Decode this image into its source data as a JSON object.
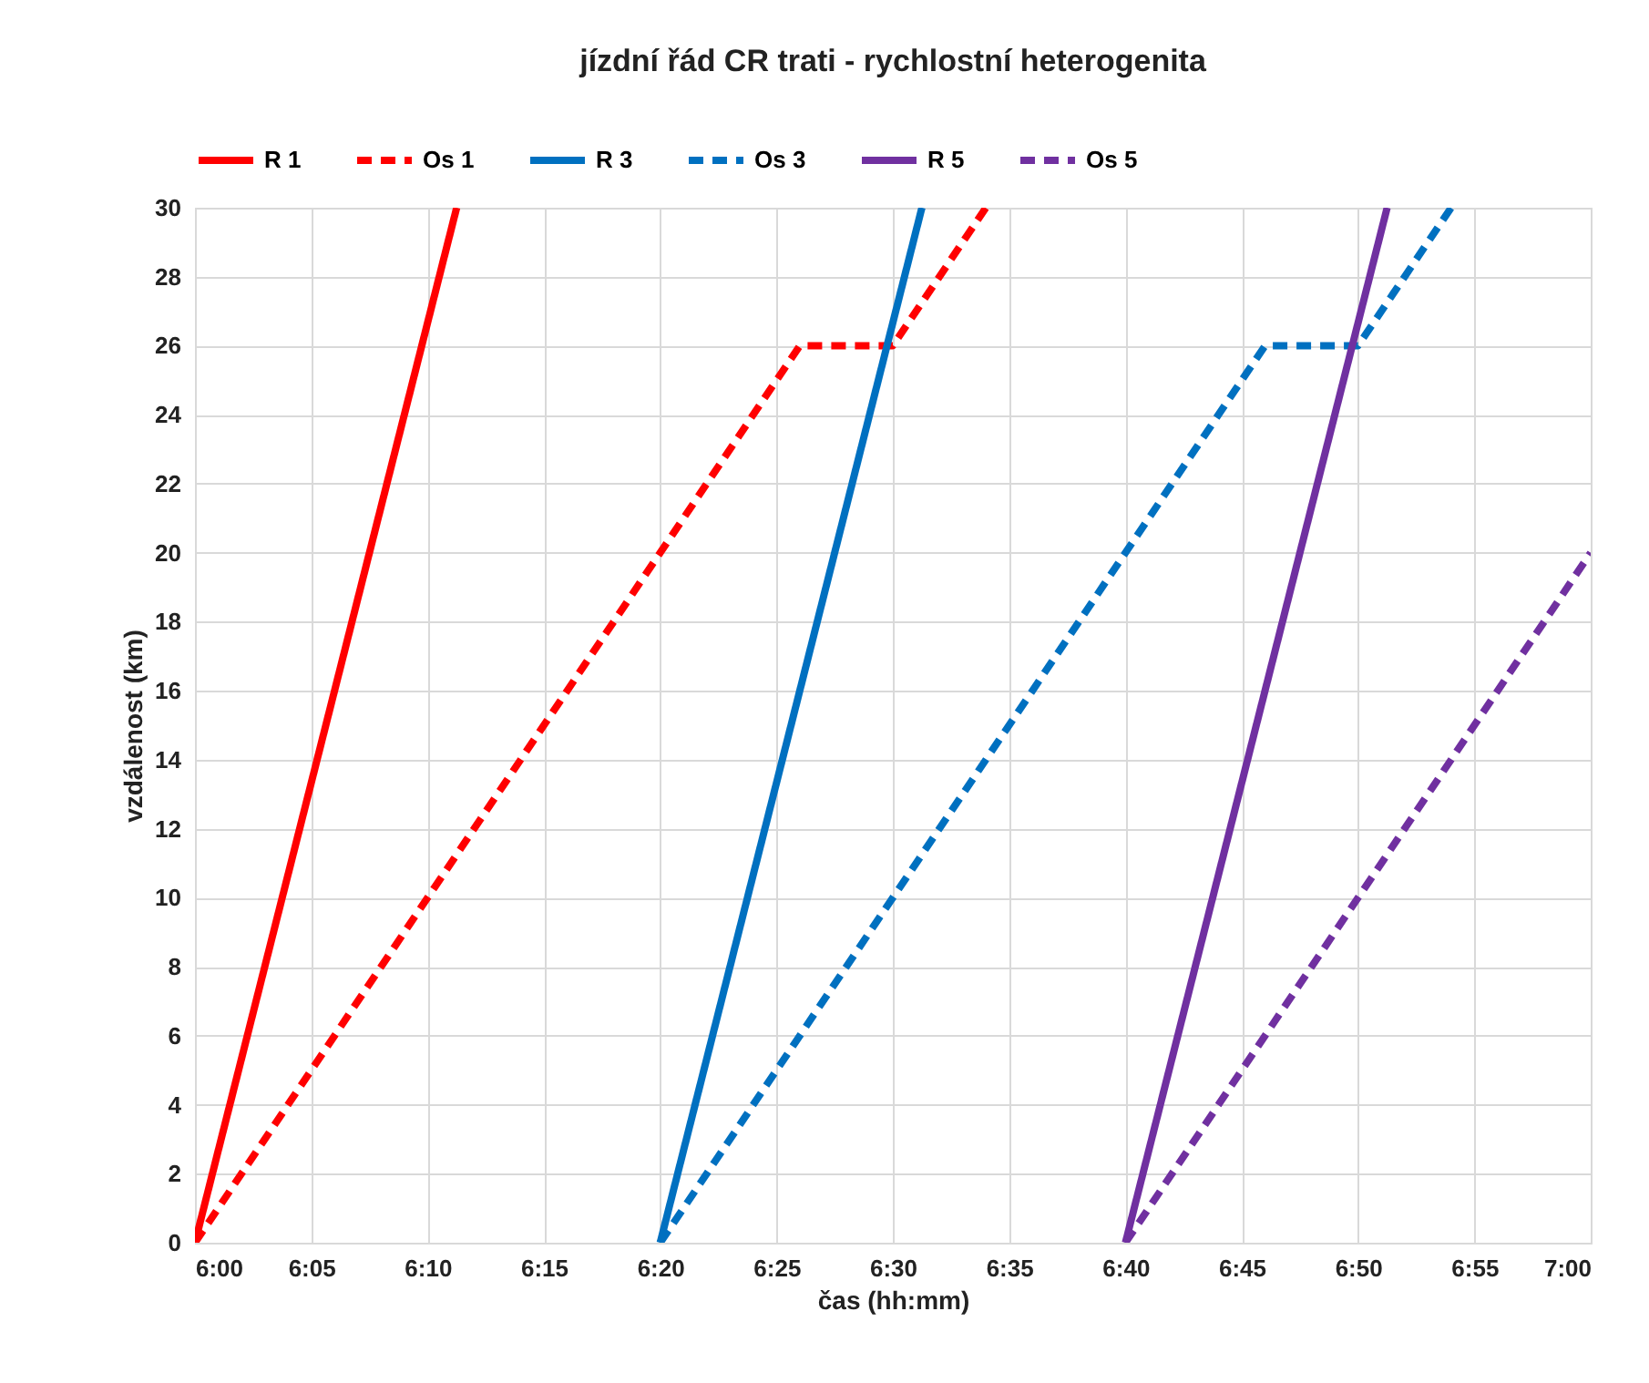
{
  "chart_data": {
    "type": "line",
    "title": "jízdní řád CR trati - rychlostní heterogenita",
    "xlabel": "čas (hh:mm)",
    "ylabel": "vzdálenost (km)",
    "series": [
      {
        "name": "R 1",
        "color": "#ff0000",
        "line_style": "solid",
        "x": [
          6,
          6.1875
        ],
        "values": [
          0,
          30
        ]
      },
      {
        "name": "Os 1",
        "color": "#ff0000",
        "line_style": "dashed",
        "x": [
          6,
          6.43333,
          6.5,
          6.56667
        ],
        "values": [
          0,
          26,
          26,
          30
        ]
      },
      {
        "name": "R 3",
        "color": "#0070c0",
        "line_style": "solid",
        "x": [
          6.33333,
          6.52083
        ],
        "values": [
          0,
          30
        ]
      },
      {
        "name": "Os 3",
        "color": "#0070c0",
        "line_style": "dashed",
        "x": [
          6.33333,
          6.76667,
          6.83333,
          6.9
        ],
        "values": [
          0,
          26,
          26,
          30
        ]
      },
      {
        "name": "R 5",
        "color": "#7030a0",
        "line_style": "solid",
        "x": [
          6.66667,
          6.85417
        ],
        "values": [
          0,
          30
        ]
      },
      {
        "name": "Os 5",
        "color": "#7030a0",
        "line_style": "dashed",
        "x": [
          6.66667,
          7
        ],
        "values": [
          0,
          20
        ]
      }
    ],
    "xlim": [
      6,
      7
    ],
    "xticks": [
      {
        "value": 6,
        "label": "6:00"
      },
      {
        "value": 6.08333,
        "label": "6:05"
      },
      {
        "value": 6.16667,
        "label": "6:10"
      },
      {
        "value": 6.25,
        "label": "6:15"
      },
      {
        "value": 6.33333,
        "label": "6:20"
      },
      {
        "value": 6.41667,
        "label": "6:25"
      },
      {
        "value": 6.5,
        "label": "6:30"
      },
      {
        "value": 6.58333,
        "label": "6:35"
      },
      {
        "value": 6.66667,
        "label": "6:40"
      },
      {
        "value": 6.75,
        "label": "6:45"
      },
      {
        "value": 6.83333,
        "label": "6:50"
      },
      {
        "value": 6.91667,
        "label": "6:55"
      },
      {
        "value": 7,
        "label": "7:00"
      }
    ],
    "ylim": [
      0,
      30
    ],
    "yticks": [
      0,
      2,
      4,
      6,
      8,
      10,
      12,
      14,
      16,
      18,
      20,
      22,
      24,
      26,
      28,
      30
    ],
    "grid": true,
    "legend": "top",
    "marker": "none"
  }
}
